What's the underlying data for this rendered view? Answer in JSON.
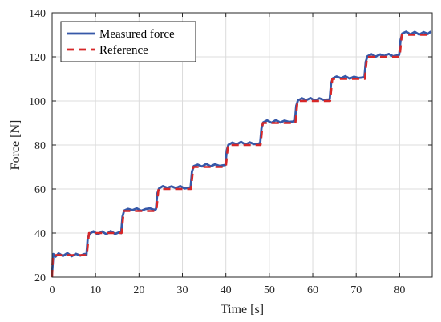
{
  "chart_data": {
    "type": "line",
    "title": "",
    "xlabel": "Time [s]",
    "ylabel": "Force [N]",
    "xlim": [
      0,
      87.5
    ],
    "ylim": [
      20,
      140
    ],
    "xticks": [
      "0",
      "10",
      "20",
      "30",
      "40",
      "50",
      "60",
      "70",
      "80"
    ],
    "yticks": [
      "20",
      "40",
      "60",
      "80",
      "100",
      "120",
      "140"
    ],
    "grid": true,
    "legend_position": "top-left",
    "series": [
      {
        "name": "Measured force",
        "color": "#3658a8",
        "style": "solid",
        "x": [
          0,
          0.3,
          0.8,
          1.5,
          2.5,
          3.5,
          4.5,
          5.5,
          6.5,
          7.5,
          7.9,
          8.2,
          8.6,
          9.5,
          10.5,
          11.5,
          12.5,
          13.5,
          14.5,
          15.5,
          15.9,
          16.2,
          16.6,
          17.5,
          18.5,
          19.5,
          20.5,
          21.5,
          22.5,
          23.5,
          23.9,
          24.2,
          24.6,
          25.5,
          26.5,
          27.5,
          28.5,
          29.5,
          30.5,
          31.5,
          31.9,
          32.2,
          32.6,
          33.5,
          34.5,
          35.5,
          36.5,
          37.5,
          38.5,
          39.5,
          39.9,
          40.2,
          40.6,
          41.5,
          42.5,
          43.5,
          44.5,
          45.5,
          46.5,
          47.5,
          47.9,
          48.2,
          48.6,
          49.5,
          50.5,
          51.5,
          52.5,
          53.5,
          54.5,
          55.5,
          55.9,
          56.2,
          56.6,
          57.5,
          58.5,
          59.5,
          60.5,
          61.5,
          62.5,
          63.5,
          63.9,
          64.2,
          64.6,
          65.5,
          66.5,
          67.5,
          68.5,
          69.5,
          70.5,
          71.5,
          71.9,
          72.2,
          72.6,
          73.5,
          74.5,
          75.5,
          76.5,
          77.5,
          78.5,
          79.5,
          79.9,
          80.2,
          80.6,
          81.5,
          82.5,
          83.5,
          84.5,
          85.5,
          86.5,
          87.2
        ],
        "y": [
          22,
          30.5,
          29.3,
          30.8,
          29.6,
          30.9,
          29.5,
          30.6,
          29.8,
          30.5,
          30,
          37.5,
          39.6,
          40.8,
          39.4,
          40.7,
          39.5,
          40.9,
          39.6,
          40.4,
          40,
          47.5,
          50.2,
          51,
          50.4,
          51.2,
          50.1,
          50.9,
          51.2,
          50.6,
          50.8,
          57.8,
          60.2,
          61.3,
          60.5,
          61.2,
          60.4,
          61.3,
          60.2,
          60.6,
          60.9,
          67.8,
          70.4,
          71.1,
          70.2,
          71.4,
          70.3,
          71.2,
          70.5,
          70.8,
          70.9,
          77.6,
          80.1,
          81.1,
          80.3,
          81.4,
          80.2,
          81.2,
          80.4,
          80.6,
          80.9,
          87.6,
          90.3,
          91.2,
          90.1,
          91.3,
          90.2,
          91.1,
          90.5,
          90.7,
          90.9,
          97.8,
          100.3,
          101.2,
          100.4,
          101.3,
          100.1,
          101.2,
          100.5,
          100.7,
          100.8,
          107.8,
          110.2,
          111.1,
          110.3,
          111.2,
          110.1,
          111,
          110.4,
          110.6,
          110.8,
          117.8,
          120.3,
          121.2,
          120.1,
          121.1,
          120.4,
          121.3,
          120.2,
          120.7,
          120.9,
          127.6,
          130.6,
          131.4,
          130.2,
          131.3,
          130.1,
          131.2,
          130.4,
          131.5
        ]
      },
      {
        "name": "Reference",
        "color": "#d62728",
        "style": "dashed",
        "x": [
          0,
          0.15,
          8,
          8.5,
          16,
          16.5,
          24,
          24.5,
          32,
          32.5,
          40,
          40.5,
          48,
          48.5,
          56,
          56.5,
          64,
          64.5,
          72,
          72.5,
          80,
          80.5,
          87.5
        ],
        "y": [
          20,
          30,
          30,
          40,
          40,
          50,
          50,
          60,
          60,
          70,
          70,
          80,
          80,
          90,
          90,
          100,
          100,
          110,
          110,
          120,
          120,
          130,
          130
        ]
      }
    ]
  }
}
